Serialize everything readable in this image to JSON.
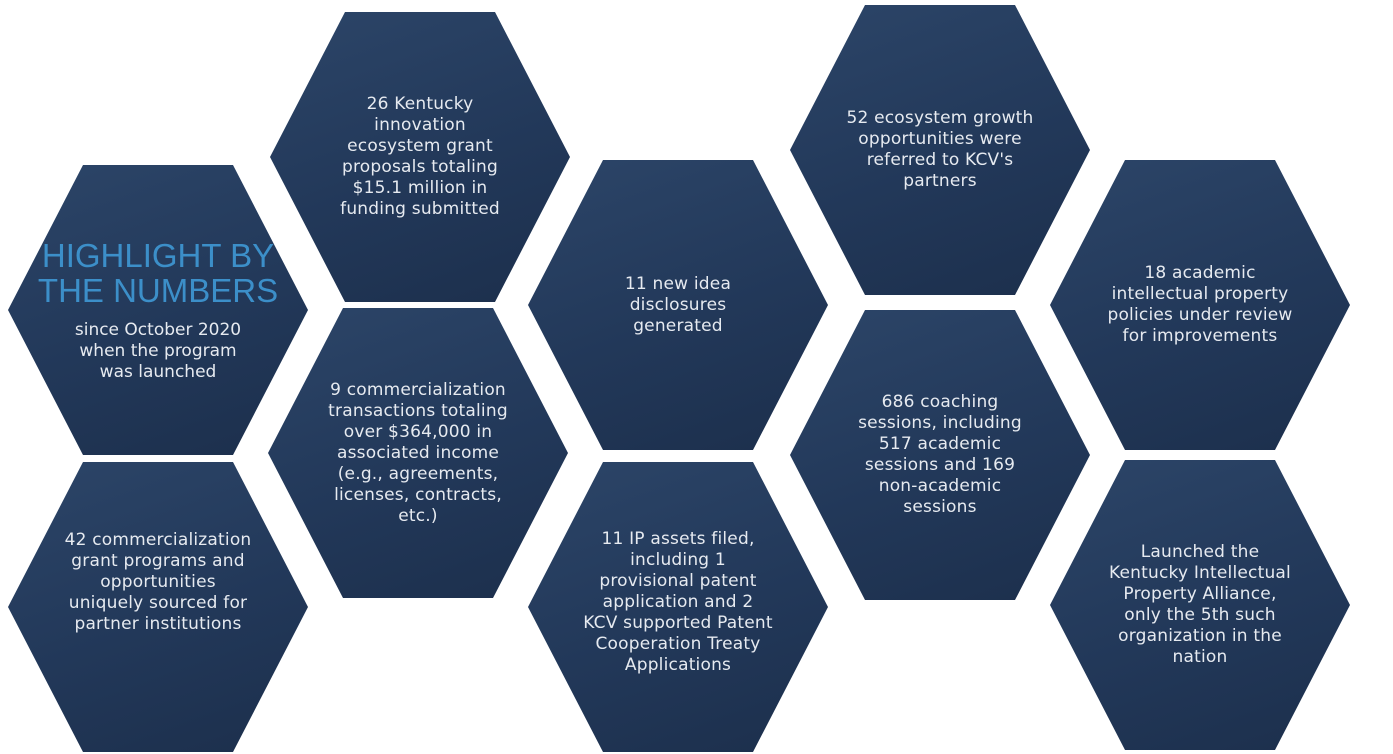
{
  "title": "HIGHLIGHT BY THE NUMBERS",
  "subtitle": "since October 2020 when the program was launched",
  "stats": [
    {
      "id": "grant-proposals",
      "text": "26 Kentucky innovation ecosystem grant proposals totaling $15.1 million in funding submitted"
    },
    {
      "id": "ecosystem-growth",
      "text": "52 ecosystem growth opportunities were referred to KCV's partners"
    },
    {
      "id": "idea-disclosures",
      "text": "11 new idea disclosures generated"
    },
    {
      "id": "ip-policies",
      "text": "18 academic intellectual property policies under review for improvements"
    },
    {
      "id": "commercialization-transactions",
      "text": "9 commercialization transactions totaling over $364,000 in associated income (e.g., agreements, licenses, contracts, etc.)"
    },
    {
      "id": "coaching-sessions",
      "text": "686 coaching sessions, including 517 academic sessions and 169 non-academic sessions"
    },
    {
      "id": "grant-programs",
      "text": "42 commercialization grant programs and opportunities uniquely sourced for partner institutions"
    },
    {
      "id": "ip-assets",
      "text": "11 IP assets filed, including 1 provisional patent application and 2 KCV supported Patent Cooperation Treaty Applications"
    },
    {
      "id": "ip-alliance",
      "text": "Launched the Kentucky Intellectual Property Alliance, only the 5th such organization in the nation"
    }
  ],
  "colors": {
    "hexagon": "#23395a",
    "title": "#3c8fc9",
    "text": "#e6eaf0",
    "background": "#ffffff"
  }
}
